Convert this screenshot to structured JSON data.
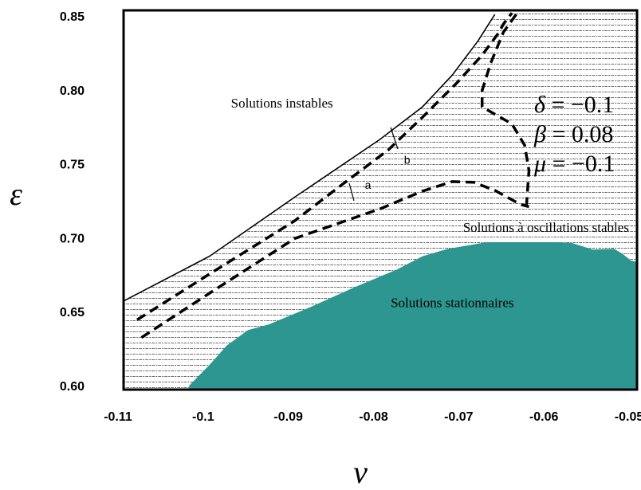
{
  "chart_data": {
    "type": "line",
    "xlabel": "ν",
    "ylabel": "ε",
    "xlim": [
      -0.11,
      -0.05
    ],
    "ylim": [
      0.6,
      0.85
    ],
    "x_ticks": [
      "-0.11",
      "-0.1",
      "-0.09",
      "-0.08",
      "-0.07",
      "-0.06",
      "-0.05"
    ],
    "y_ticks": [
      "0.85",
      "0.80",
      "0.75",
      "0.70",
      "0.65",
      "0.60"
    ],
    "grid": false,
    "parameters": [
      {
        "symbol": "δ",
        "text": " = −0.1"
      },
      {
        "symbol": "β",
        "text": " = 0.08"
      },
      {
        "symbol": "μ",
        "text": " = −0.1"
      }
    ],
    "regions": [
      {
        "label": "Solutions instables",
        "x": -0.0915,
        "y": 0.788
      },
      {
        "label": "Solutions à oscillations stables",
        "x": -0.0605,
        "y": 0.704
      },
      {
        "label": "Solutions stationnaires",
        "x": -0.0715,
        "y": 0.653
      }
    ],
    "curve_labels": [
      {
        "label": "a",
        "x": -0.0814,
        "y": 0.733
      },
      {
        "label": "b",
        "x": -0.0768,
        "y": 0.75
      }
    ],
    "stability_boundary": {
      "x": [
        -0.11,
        -0.1,
        -0.09,
        -0.08,
        -0.075,
        -0.0715,
        -0.0685,
        -0.0665
      ],
      "y": [
        0.6575,
        0.6875,
        0.7275,
        0.7665,
        0.7885,
        0.81,
        0.833,
        0.851
      ]
    },
    "stationary_region": {
      "x": [
        -0.1024,
        -0.1,
        -0.098,
        -0.0955,
        -0.093,
        -0.088,
        -0.083,
        -0.078,
        -0.075,
        -0.072,
        -0.0695,
        -0.0675,
        -0.065,
        -0.062,
        -0.0595,
        -0.0575,
        -0.055,
        -0.0525,
        -0.0515,
        -0.0505,
        -0.0495,
        -0.049
      ],
      "y": [
        0.6,
        0.614,
        0.627,
        0.6375,
        0.6415,
        0.6535,
        0.6665,
        0.6785,
        0.6875,
        0.6925,
        0.695,
        0.697,
        0.697,
        0.697,
        0.697,
        0.6965,
        0.692,
        0.6925,
        0.689,
        0.6845,
        0.6835,
        0.684
      ]
    },
    "dashed_curves": [
      {
        "label": "a",
        "x": [
          -0.108,
          -0.1,
          -0.09,
          -0.08,
          -0.075,
          -0.0715,
          -0.069,
          -0.0665,
          -0.0635,
          -0.0625
        ],
        "y": [
          0.6325,
          0.6625,
          0.6995,
          0.7195,
          0.7315,
          0.738,
          0.7375,
          0.732,
          0.7225,
          0.721
        ]
      },
      {
        "label": "b",
        "x": [
          -0.1085,
          -0.1,
          -0.09,
          -0.085,
          -0.079,
          -0.075,
          -0.071,
          -0.068,
          -0.066,
          -0.0655,
          -0.0645
        ],
        "y": [
          0.6445,
          0.6755,
          0.7115,
          0.7335,
          0.7595,
          0.7815,
          0.8045,
          0.8235,
          0.839,
          0.8445,
          0.852
        ]
      },
      {
        "label": "",
        "x": [
          -0.064,
          -0.0655,
          -0.067,
          -0.068,
          -0.068,
          -0.0665,
          -0.0645,
          -0.063,
          -0.0625,
          -0.0628
        ],
        "y": [
          0.851,
          0.839,
          0.818,
          0.7995,
          0.7885,
          0.7835,
          0.777,
          0.7625,
          0.7455,
          0.7215
        ]
      }
    ],
    "colors": {
      "stationary_fill": "#2d9691",
      "hatch": "#333333",
      "boundary": "#000000"
    }
  }
}
